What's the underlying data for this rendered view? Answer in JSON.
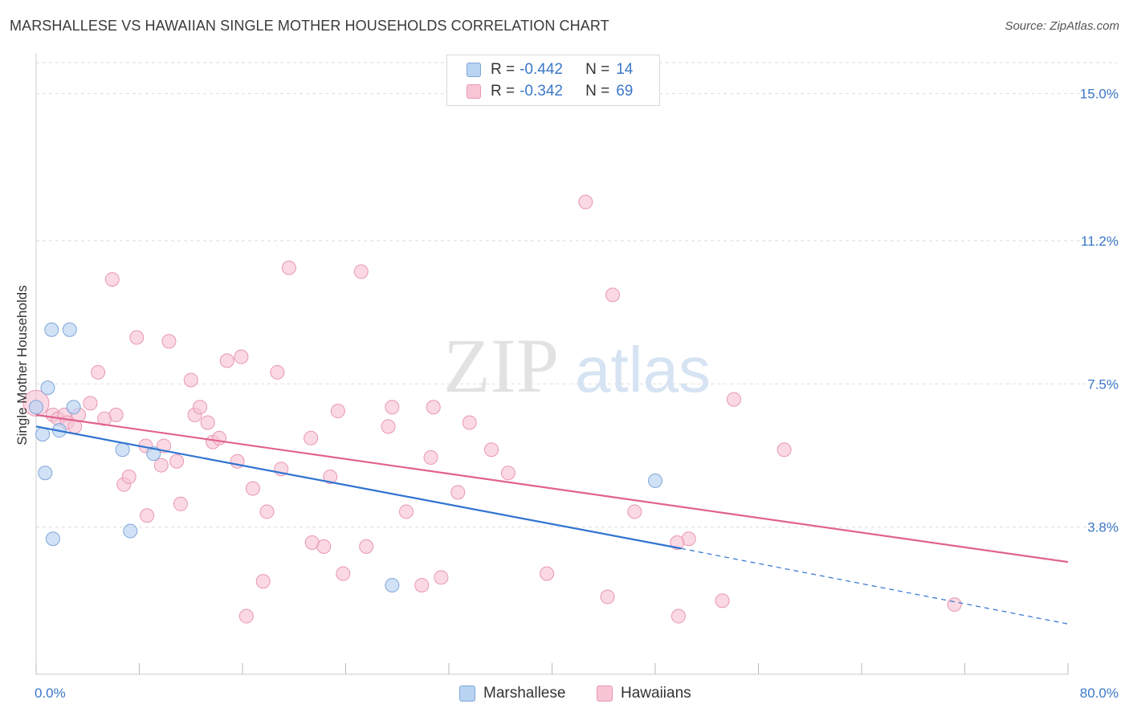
{
  "header": {
    "title": "MARSHALLESE VS HAWAIIAN SINGLE MOTHER HOUSEHOLDS CORRELATION CHART",
    "source": "Source: ZipAtlas.com"
  },
  "legend_top": {
    "rows": [
      {
        "r_label": "R =",
        "r_value": "-0.442",
        "n_label": "N =",
        "n_value": "14"
      },
      {
        "r_label": "R =",
        "r_value": "-0.342",
        "n_label": "N =",
        "n_value": "69"
      }
    ]
  },
  "legend_bottom": {
    "items": [
      {
        "label": "Marshallese"
      },
      {
        "label": "Hawaiians"
      }
    ]
  },
  "watermark": {
    "part1": "ZIP",
    "part2": "atlas"
  },
  "colors": {
    "marshallese_fill": "#b9d3f3",
    "marshallese_stroke": "#7fa6d9",
    "marshallese_line": "#2f73d0",
    "hawaiians_fill": "#f8c5d5",
    "hawaiians_stroke": "#e996b3",
    "hawaiians_line": "#e0628f",
    "tick_label": "#3b78c8",
    "grid": "#dddddd"
  },
  "chart_data": {
    "type": "scatter",
    "title": "MARSHALLESE VS HAWAIIAN SINGLE MOTHER HOUSEHOLDS CORRELATION CHART",
    "xlabel": "",
    "ylabel": "Single Mother Households",
    "xlim": [
      0,
      80
    ],
    "ylim": [
      0,
      15.8
    ],
    "x_tick_labels": [
      "0.0%",
      "80.0%"
    ],
    "y_ticks": [
      3.8,
      7.5,
      11.2,
      15.0
    ],
    "y_tick_labels": [
      "3.8%",
      "7.5%",
      "11.2%",
      "15.0%"
    ],
    "grid": true,
    "legend_position": "top-center",
    "series": [
      {
        "name": "Marshallese",
        "R": -0.442,
        "N": 14,
        "trend": {
          "x0": 0,
          "y0": 6.4,
          "x1": 50,
          "y1": 3.25,
          "dashed_to_x": 80,
          "dashed_to_y": 1.3
        },
        "points": [
          [
            0.0,
            6.9
          ],
          [
            0.5,
            6.2
          ],
          [
            0.7,
            5.2
          ],
          [
            0.9,
            7.4
          ],
          [
            1.2,
            8.9
          ],
          [
            1.3,
            3.5
          ],
          [
            1.8,
            6.3
          ],
          [
            2.6,
            8.9
          ],
          [
            2.9,
            6.9
          ],
          [
            6.7,
            5.8
          ],
          [
            7.3,
            3.7
          ],
          [
            9.1,
            5.7
          ],
          [
            27.6,
            2.3
          ],
          [
            48.0,
            5.0
          ]
        ]
      },
      {
        "name": "Hawaiians",
        "R": -0.342,
        "N": 69,
        "trend": {
          "x0": 0,
          "y0": 6.7,
          "x1": 80,
          "y1": 2.9
        },
        "points": [
          [
            0.0,
            7.0
          ],
          [
            1.3,
            6.7
          ],
          [
            1.7,
            6.6
          ],
          [
            2.2,
            6.7
          ],
          [
            2.4,
            6.5
          ],
          [
            3.0,
            6.4
          ],
          [
            3.3,
            6.7
          ],
          [
            4.2,
            7.0
          ],
          [
            4.8,
            7.8
          ],
          [
            5.3,
            6.6
          ],
          [
            5.9,
            10.2
          ],
          [
            6.2,
            6.7
          ],
          [
            6.8,
            4.9
          ],
          [
            7.2,
            5.1
          ],
          [
            7.8,
            8.7
          ],
          [
            8.5,
            5.9
          ],
          [
            8.6,
            4.1
          ],
          [
            9.7,
            5.4
          ],
          [
            9.9,
            5.9
          ],
          [
            10.3,
            8.6
          ],
          [
            10.9,
            5.5
          ],
          [
            11.2,
            4.4
          ],
          [
            12.0,
            7.6
          ],
          [
            12.3,
            6.7
          ],
          [
            12.7,
            6.9
          ],
          [
            13.3,
            6.5
          ],
          [
            13.7,
            6.0
          ],
          [
            14.2,
            6.1
          ],
          [
            14.8,
            8.1
          ],
          [
            15.6,
            5.5
          ],
          [
            15.9,
            8.2
          ],
          [
            16.3,
            1.5
          ],
          [
            16.8,
            4.8
          ],
          [
            17.6,
            2.4
          ],
          [
            17.9,
            4.2
          ],
          [
            18.7,
            7.8
          ],
          [
            19.0,
            5.3
          ],
          [
            19.6,
            10.5
          ],
          [
            21.3,
            6.1
          ],
          [
            21.4,
            3.4
          ],
          [
            22.3,
            3.3
          ],
          [
            22.8,
            5.1
          ],
          [
            23.4,
            6.8
          ],
          [
            23.8,
            2.6
          ],
          [
            25.2,
            10.4
          ],
          [
            25.6,
            3.3
          ],
          [
            27.3,
            6.4
          ],
          [
            27.6,
            6.9
          ],
          [
            28.7,
            4.2
          ],
          [
            29.9,
            2.3
          ],
          [
            30.6,
            5.6
          ],
          [
            30.8,
            6.9
          ],
          [
            31.4,
            2.5
          ],
          [
            32.7,
            4.7
          ],
          [
            33.6,
            6.5
          ],
          [
            35.3,
            5.8
          ],
          [
            36.6,
            5.2
          ],
          [
            39.6,
            2.6
          ],
          [
            42.6,
            12.2
          ],
          [
            44.3,
            2.0
          ],
          [
            44.7,
            9.8
          ],
          [
            46.4,
            4.2
          ],
          [
            49.8,
            1.5
          ],
          [
            50.6,
            3.5
          ],
          [
            53.2,
            1.9
          ],
          [
            54.1,
            7.1
          ],
          [
            71.2,
            1.8
          ],
          [
            49.7,
            3.4
          ],
          [
            58.0,
            5.8
          ]
        ]
      }
    ]
  }
}
